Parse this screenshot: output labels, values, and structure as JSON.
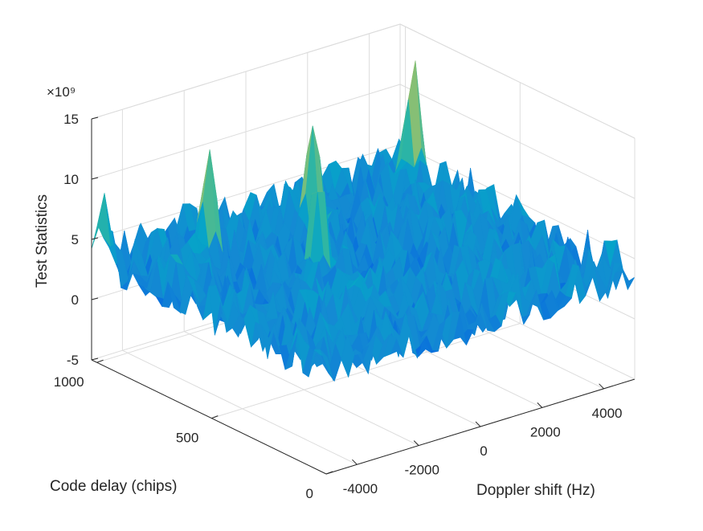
{
  "chart_data": {
    "type": "surface",
    "xlabel": "Doppler shift (Hz)",
    "ylabel": "Code delay (chips)",
    "zlabel": "Test Statistics",
    "z_exponent": "×10⁹",
    "x_ticks": [
      -4000,
      -2000,
      0,
      2000,
      4000
    ],
    "y_ticks": [
      0,
      500,
      1000
    ],
    "z_ticks": [
      -5,
      0,
      5,
      10,
      15
    ],
    "xlim": [
      -5000,
      5000
    ],
    "ylim": [
      0,
      1023
    ],
    "zlim": [
      -5,
      15
    ],
    "zlim_units": "x1e9",
    "colormap": "parula",
    "grid": true,
    "peaks": [
      {
        "doppler": -2500,
        "delay": 850,
        "value": 12.5
      },
      {
        "doppler": 500,
        "delay": 800,
        "value": 13.0
      },
      {
        "doppler": 4500,
        "delay": 900,
        "value": 14.0
      },
      {
        "doppler": -800,
        "delay": 600,
        "value": 12.0
      },
      {
        "doppler": -4800,
        "delay": 1000,
        "value": 9.0
      },
      {
        "doppler": 4900,
        "delay": 100,
        "value": 6.0
      }
    ],
    "noise_level": [
      2,
      6
    ]
  }
}
